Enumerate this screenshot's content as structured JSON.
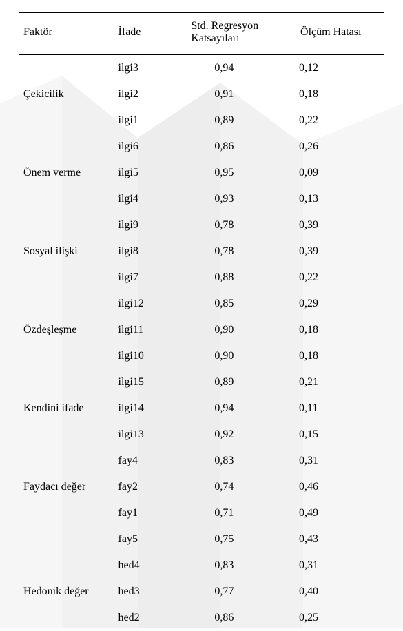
{
  "columns": {
    "faktor": "Faktör",
    "ifade": "İfade",
    "reg": "Std. Regresyon\nKatsayıları",
    "err": "Ölçüm Hatası"
  },
  "rows": [
    {
      "faktor": "",
      "ifade": "ilgi3",
      "reg": "0,94",
      "err": "0,12"
    },
    {
      "faktor": "Çekicilik",
      "ifade": "ilgi2",
      "reg": "0,91",
      "err": "0,18"
    },
    {
      "faktor": "",
      "ifade": "ilgi1",
      "reg": "0,89",
      "err": "0,22"
    },
    {
      "faktor": "",
      "ifade": "ilgi6",
      "reg": "0,86",
      "err": "0,26"
    },
    {
      "faktor": "Önem verme",
      "ifade": "ilgi5",
      "reg": "0,95",
      "err": "0,09"
    },
    {
      "faktor": "",
      "ifade": "ilgi4",
      "reg": "0,93",
      "err": "0,13"
    },
    {
      "faktor": "",
      "ifade": "ilgi9",
      "reg": "0,78",
      "err": "0,39"
    },
    {
      "faktor": "Sosyal ilişki",
      "ifade": "ilgi8",
      "reg": "0,78",
      "err": "0,39"
    },
    {
      "faktor": "",
      "ifade": "ilgi7",
      "reg": "0,88",
      "err": "0,22"
    },
    {
      "faktor": "",
      "ifade": "ilgi12",
      "reg": "0,85",
      "err": "0,29"
    },
    {
      "faktor": "Özdeşleşme",
      "ifade": "ilgi11",
      "reg": "0,90",
      "err": "0,18"
    },
    {
      "faktor": "",
      "ifade": "ilgi10",
      "reg": "0,90",
      "err": "0,18"
    },
    {
      "faktor": "",
      "ifade": "ilgi15",
      "reg": "0,89",
      "err": "0,21"
    },
    {
      "faktor": "Kendini ifade",
      "ifade": "ilgi14",
      "reg": "0,94",
      "err": "0,11"
    },
    {
      "faktor": "",
      "ifade": "ilgi13",
      "reg": "0,92",
      "err": "0,15"
    },
    {
      "faktor": "",
      "ifade": "fay4",
      "reg": "0,83",
      "err": "0,31"
    },
    {
      "faktor": "Faydacı değer",
      "ifade": "fay2",
      "reg": "0,74",
      "err": "0,46"
    },
    {
      "faktor": "",
      "ifade": "fay1",
      "reg": "0,71",
      "err": "0,49"
    },
    {
      "faktor": "",
      "ifade": "fay5",
      "reg": "0,75",
      "err": "0,43"
    },
    {
      "faktor": "",
      "ifade": "hed4",
      "reg": "0,83",
      "err": "0,31"
    },
    {
      "faktor": "Hedonik değer",
      "ifade": "hed3",
      "reg": "0,77",
      "err": "0,40"
    },
    {
      "faktor": "",
      "ifade": "hed2",
      "reg": "0,86",
      "err": "0,25"
    }
  ],
  "style": {
    "font_family": "Times New Roman",
    "font_size_pt": 12,
    "text_color": "#000000",
    "background_color": "#ffffff",
    "border_color": "#000000",
    "watermark": {
      "band_colors": [
        "#eeeeee",
        "#e5e5e5",
        "#dcdcdc",
        "#e5e5e5",
        "#eeeeee"
      ],
      "opacity": 0.5
    }
  }
}
